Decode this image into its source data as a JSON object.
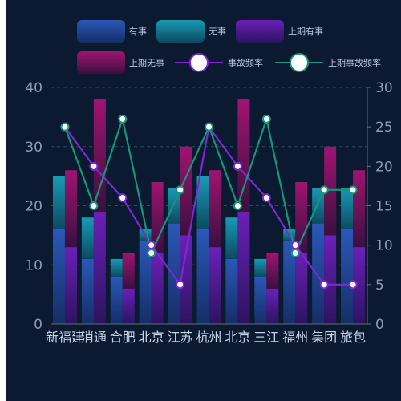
{
  "chart_data": {
    "type": "bar",
    "categories": [
      "新福建",
      "消通",
      "合肥",
      "北京",
      "江苏",
      "杭州",
      "北京",
      "三江",
      "福州",
      "集团",
      "旅包"
    ],
    "series": [
      {
        "name": "有事",
        "type": "bar",
        "stack": "current",
        "axis": "left",
        "values": [
          16,
          11,
          8,
          14,
          17,
          16,
          11,
          8,
          14,
          17,
          16
        ]
      },
      {
        "name": "无事",
        "type": "bar",
        "stack": "current",
        "axis": "left",
        "values": [
          9,
          7,
          3,
          2,
          6,
          9,
          7,
          3,
          2,
          6,
          7
        ]
      },
      {
        "name": "上期有事",
        "type": "bar",
        "stack": "previous",
        "axis": "left",
        "values": [
          13,
          19,
          6,
          12,
          15,
          13,
          19,
          6,
          12,
          15,
          13
        ]
      },
      {
        "name": "上期无事",
        "type": "bar",
        "stack": "previous",
        "axis": "left",
        "values": [
          13,
          19,
          6,
          12,
          15,
          13,
          19,
          6,
          12,
          15,
          13
        ]
      },
      {
        "name": "事故频率",
        "type": "line",
        "axis": "right",
        "values": [
          25,
          20,
          16,
          10,
          5,
          25,
          20,
          16,
          10,
          5,
          5
        ]
      },
      {
        "name": "上期事故频率",
        "type": "line",
        "axis": "right",
        "values": [
          25,
          15,
          26,
          9,
          17,
          25,
          15,
          26,
          9,
          17,
          17
        ]
      }
    ],
    "y_left": {
      "min": 0,
      "max": 40,
      "ticks": [
        0,
        10,
        20,
        30,
        40
      ]
    },
    "y_right": {
      "min": 0,
      "max": 30,
      "ticks": [
        0,
        5,
        10,
        15,
        20,
        25,
        30
      ]
    },
    "legend": {
      "position": "top"
    },
    "grid": true,
    "colors": {
      "有事": "#1f4a9c",
      "无事": "#0f8fa8",
      "上期有事": "#5a1fa0",
      "上期无事": "#8a1464",
      "事故频率": "#7a2ad0",
      "上期事故频率": "#15957a"
    }
  }
}
